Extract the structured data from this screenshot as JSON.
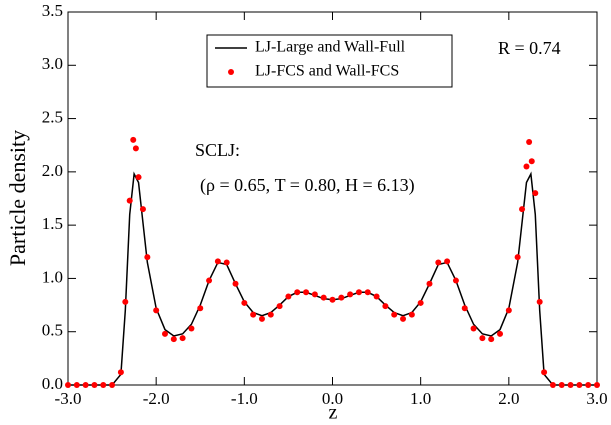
{
  "chart_data": {
    "type": "line",
    "xlabel": "z",
    "ylabel": "Particle density",
    "annotations": [
      "R = 0.74",
      "SCLJ:",
      "(ρ = 0.65, T = 0.80, H = 6.13)"
    ],
    "xlim": [
      -3.0,
      3.0
    ],
    "ylim": [
      0.0,
      3.5
    ],
    "xticks": [
      {
        "value": -3,
        "label": "-3.0"
      },
      {
        "value": -2,
        "label": "-2.0"
      },
      {
        "value": -1,
        "label": "-1.0"
      },
      {
        "value": 0,
        "label": "0.0"
      },
      {
        "value": 1,
        "label": "1.0"
      },
      {
        "value": 2,
        "label": "2.0"
      },
      {
        "value": 3,
        "label": "3.0"
      }
    ],
    "yticks": [
      {
        "value": 0,
        "label": "0.0"
      },
      {
        "value": 0.5,
        "label": "0.5"
      },
      {
        "value": 1,
        "label": "1.0"
      },
      {
        "value": 1.5,
        "label": "1.5"
      },
      {
        "value": 2,
        "label": "2.0"
      },
      {
        "value": 2.5,
        "label": "2.5"
      },
      {
        "value": 3,
        "label": "3.0"
      },
      {
        "value": 3.5,
        "label": "3.5"
      }
    ],
    "legend": "upper center",
    "series": [
      {
        "name": "LJ-Large and Wall-Full",
        "type": "line",
        "color": "#000000",
        "x": [
          -3.0,
          -2.9,
          -2.8,
          -2.7,
          -2.6,
          -2.5,
          -2.4,
          -2.35,
          -2.3,
          -2.25,
          -2.2,
          -2.1,
          -2.0,
          -1.9,
          -1.8,
          -1.7,
          -1.6,
          -1.5,
          -1.4,
          -1.3,
          -1.2,
          -1.1,
          -1.0,
          -0.9,
          -0.8,
          -0.7,
          -0.6,
          -0.5,
          -0.4,
          -0.3,
          -0.2,
          -0.1,
          0.0,
          0.1,
          0.2,
          0.3,
          0.4,
          0.5,
          0.6,
          0.7,
          0.8,
          0.9,
          1.0,
          1.1,
          1.2,
          1.3,
          1.4,
          1.5,
          1.6,
          1.7,
          1.8,
          1.9,
          2.0,
          2.1,
          2.2,
          2.25,
          2.3,
          2.35,
          2.4,
          2.5,
          2.6,
          2.7,
          2.8,
          2.9,
          3.0
        ],
        "values": [
          0,
          0,
          0,
          0,
          0,
          0,
          0.1,
          0.7,
          1.6,
          1.98,
          1.9,
          1.15,
          0.72,
          0.52,
          0.46,
          0.48,
          0.57,
          0.75,
          0.98,
          1.15,
          1.13,
          0.95,
          0.78,
          0.68,
          0.65,
          0.68,
          0.75,
          0.83,
          0.87,
          0.87,
          0.84,
          0.81,
          0.8,
          0.81,
          0.84,
          0.87,
          0.87,
          0.83,
          0.75,
          0.68,
          0.65,
          0.68,
          0.78,
          0.95,
          1.13,
          1.15,
          0.98,
          0.75,
          0.57,
          0.48,
          0.46,
          0.52,
          0.72,
          1.15,
          1.9,
          1.98,
          1.6,
          0.7,
          0.1,
          0,
          0,
          0,
          0,
          0,
          0
        ]
      },
      {
        "name": "LJ-FCS and Wall-FCS",
        "type": "scatter",
        "color": "#ff0000",
        "x": [
          -3.0,
          -2.9,
          -2.8,
          -2.7,
          -2.6,
          -2.5,
          -2.4,
          -2.35,
          -2.3,
          -2.26,
          -2.23,
          -2.2,
          -2.15,
          -2.1,
          -2.0,
          -1.9,
          -1.8,
          -1.7,
          -1.6,
          -1.5,
          -1.4,
          -1.3,
          -1.2,
          -1.1,
          -1.0,
          -0.9,
          -0.8,
          -0.7,
          -0.6,
          -0.5,
          -0.4,
          -0.3,
          -0.2,
          -0.1,
          0.0,
          0.1,
          0.2,
          0.3,
          0.4,
          0.5,
          0.6,
          0.7,
          0.8,
          0.9,
          1.0,
          1.1,
          1.2,
          1.3,
          1.4,
          1.5,
          1.6,
          1.7,
          1.8,
          1.9,
          2.0,
          2.1,
          2.15,
          2.2,
          2.23,
          2.26,
          2.3,
          2.35,
          2.4,
          2.5,
          2.6,
          2.7,
          2.8,
          2.9,
          3.0
        ],
        "values": [
          0,
          0,
          0,
          0,
          0,
          0,
          0.12,
          0.78,
          1.73,
          2.3,
          2.22,
          1.95,
          1.65,
          1.2,
          0.7,
          0.48,
          0.43,
          0.44,
          0.53,
          0.72,
          0.98,
          1.16,
          1.15,
          0.95,
          0.77,
          0.66,
          0.62,
          0.66,
          0.74,
          0.83,
          0.87,
          0.87,
          0.85,
          0.82,
          0.8,
          0.82,
          0.85,
          0.87,
          0.87,
          0.83,
          0.74,
          0.66,
          0.62,
          0.66,
          0.77,
          0.95,
          1.15,
          1.16,
          0.98,
          0.72,
          0.53,
          0.44,
          0.43,
          0.48,
          0.7,
          1.2,
          1.65,
          2.05,
          2.28,
          2.1,
          1.8,
          0.78,
          0.12,
          0,
          0,
          0,
          0,
          0,
          0
        ]
      }
    ]
  }
}
